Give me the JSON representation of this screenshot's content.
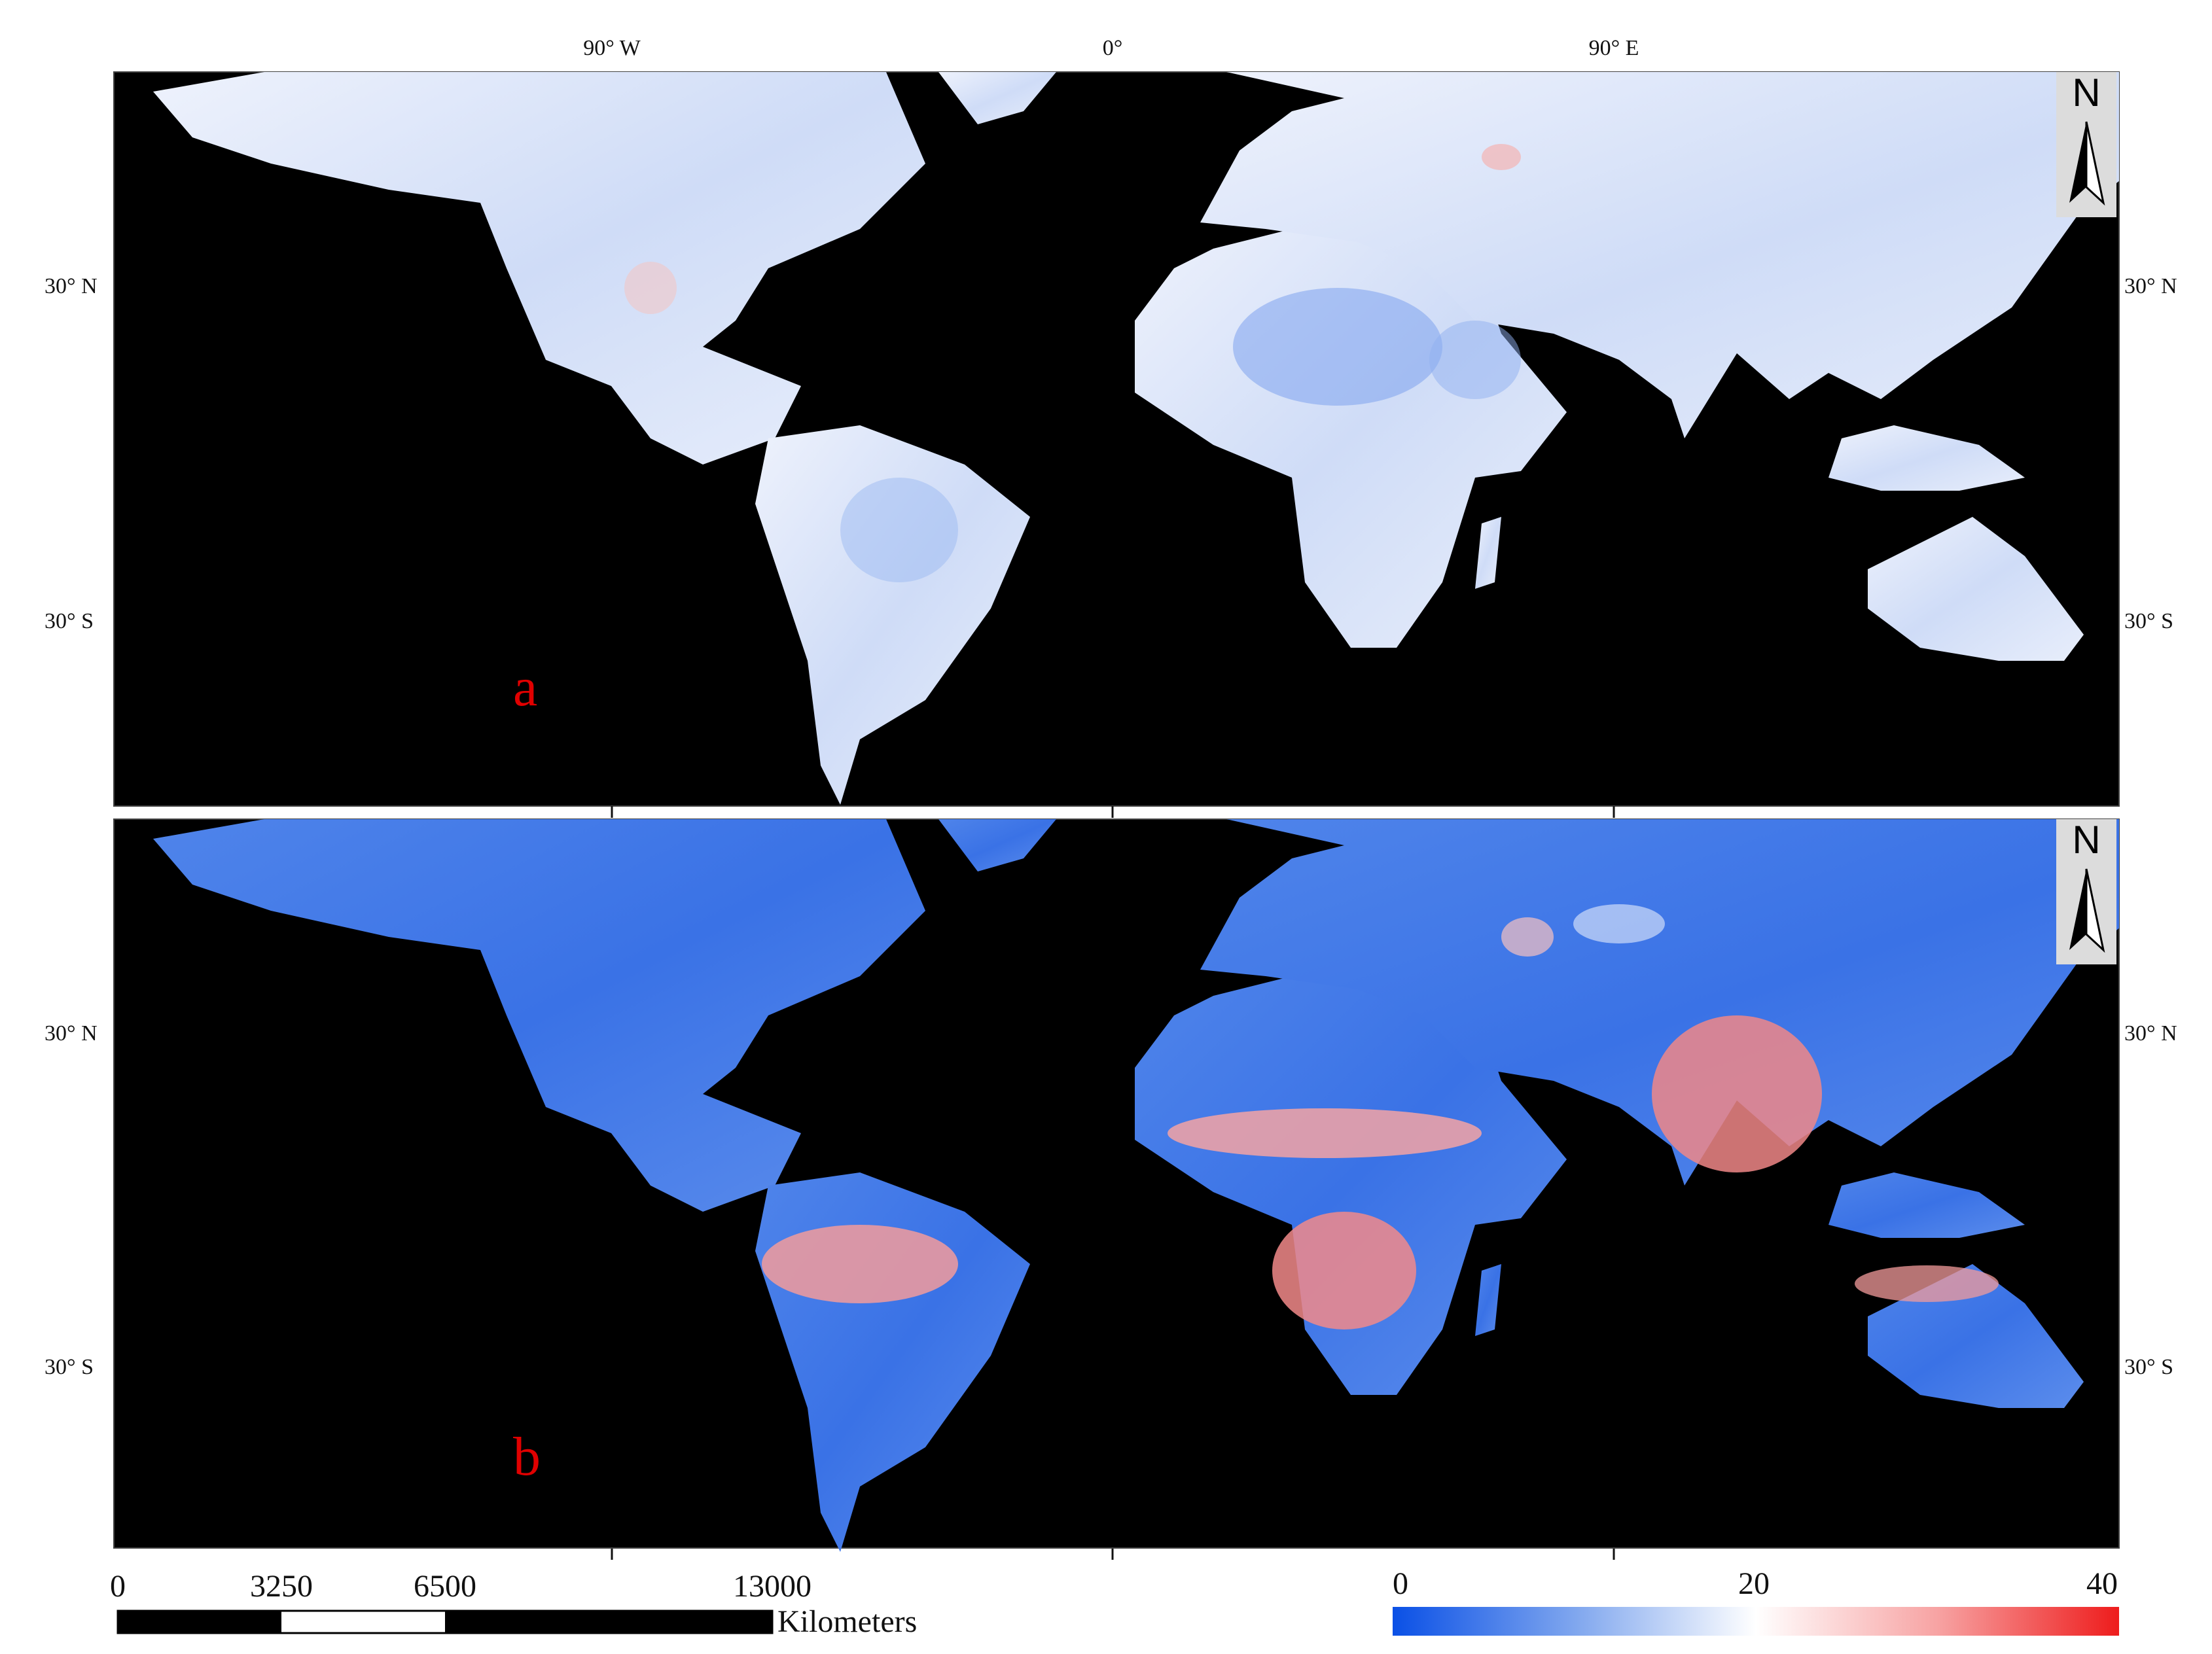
{
  "graticule": {
    "top_labels": [
      "90° W",
      "0°",
      "90° E"
    ],
    "left_labels_panel_a": [
      "30° N",
      "30° S"
    ],
    "right_labels_panel_a": [
      "30° N",
      "30° S"
    ],
    "left_labels_panel_b": [
      "30° N",
      "30° S"
    ],
    "right_labels_panel_b": [
      "30° N",
      "30° S"
    ]
  },
  "panels": [
    {
      "label": "a",
      "north_label": "N"
    },
    {
      "label": "b",
      "north_label": "N"
    }
  ],
  "scale_bar": {
    "ticks": [
      "0",
      "3250",
      "6500",
      "13000"
    ],
    "unit": "Kilometers"
  },
  "color_legend": {
    "min_label": "0",
    "mid_label": "20",
    "max_label": "40",
    "colors": [
      "#0a50e6",
      "#7fa6ee",
      "#ffffff",
      "#f7a3a3",
      "#ee1c1c"
    ]
  }
}
